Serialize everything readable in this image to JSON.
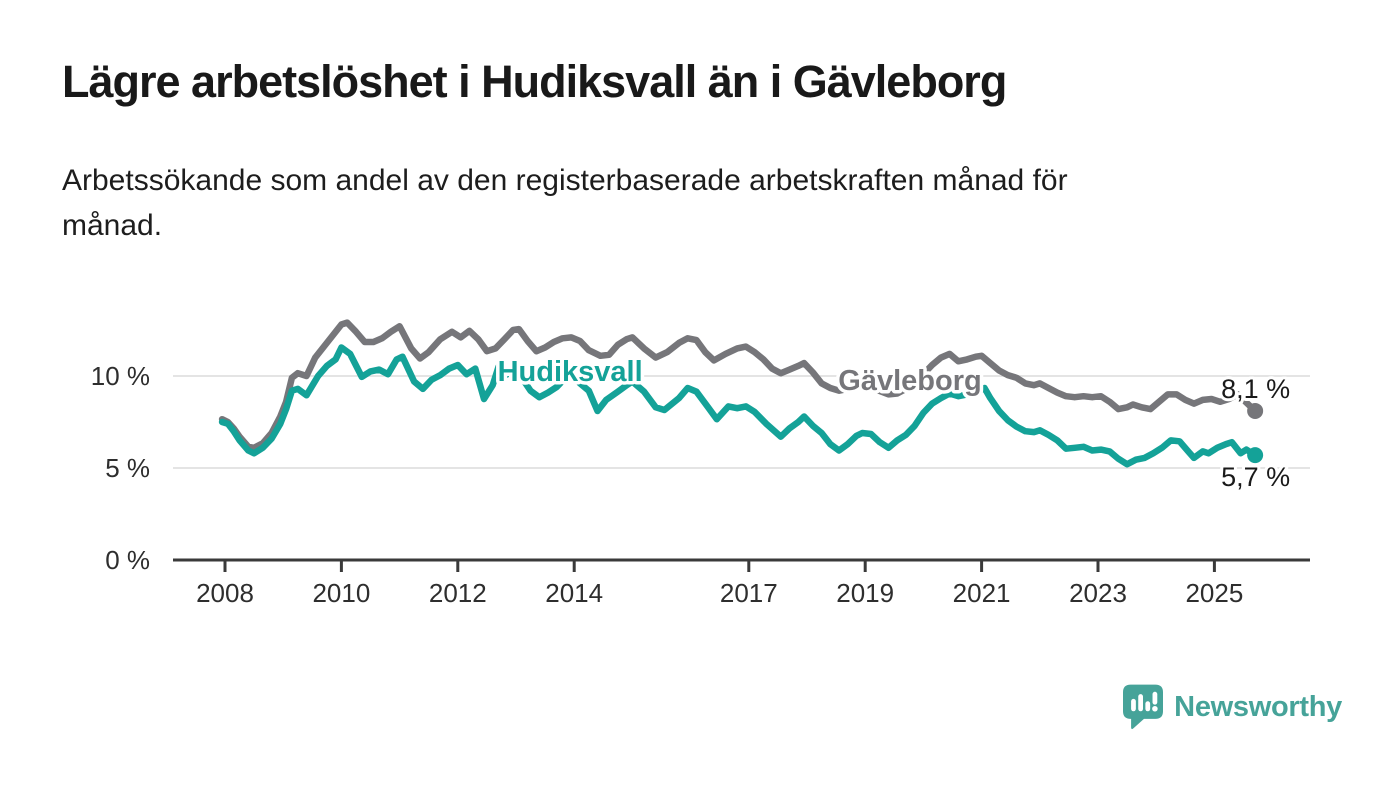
{
  "header": {
    "title": "Lägre arbetslöshet i Hudiksvall än i Gävleborg",
    "subtitle": "Arbetssökande som andel av den registerbaserade arbetskraften månad för månad."
  },
  "branding": {
    "name": "Newsworthy",
    "color": "#46a399"
  },
  "chart_data": {
    "type": "line",
    "title": "Lägre arbetslöshet i Hudiksvall än i Gävleborg",
    "subtitle": "Arbetssökande som andel av den registerbaserade arbetskraften månad för månad.",
    "grid": true,
    "legend": "inline-labels",
    "style": {
      "grid_color": "#dcdcdc",
      "axis_color": "#3a3a3a",
      "tick_label_color": "#2e2e2e",
      "value_label_color": "#1a1a1a",
      "background": "#ffffff"
    },
    "x_axis": {
      "unit": "year",
      "min": 2007.95,
      "max": 2026.5,
      "ticks": [
        2008,
        2010,
        2012,
        2014,
        2017,
        2019,
        2021,
        2023,
        2025
      ]
    },
    "y_axis": {
      "unit": "%",
      "min": 0,
      "max": 13.4,
      "ticks": [
        {
          "value": 0,
          "label": "0 %"
        },
        {
          "value": 5,
          "label": "5 %"
        },
        {
          "value": 10,
          "label": "10 %"
        }
      ]
    },
    "series": [
      {
        "name": "Gävleborg",
        "color": "#76767a",
        "end_label": "8,1 %",
        "end_value": 8.1,
        "label_pos": {
          "year": 2019.77,
          "value": 9.78
        },
        "points": [
          [
            2007.95,
            7.65
          ],
          [
            2008.05,
            7.5
          ],
          [
            2008.15,
            7.15
          ],
          [
            2008.25,
            6.7
          ],
          [
            2008.4,
            6.15
          ],
          [
            2008.5,
            6.1
          ],
          [
            2008.65,
            6.35
          ],
          [
            2008.8,
            6.9
          ],
          [
            2008.95,
            7.8
          ],
          [
            2009.05,
            8.6
          ],
          [
            2009.15,
            9.9
          ],
          [
            2009.25,
            10.15
          ],
          [
            2009.4,
            10.0
          ],
          [
            2009.55,
            11.0
          ],
          [
            2009.7,
            11.6
          ],
          [
            2009.85,
            12.2
          ],
          [
            2010.0,
            12.8
          ],
          [
            2010.1,
            12.9
          ],
          [
            2010.25,
            12.4
          ],
          [
            2010.4,
            11.85
          ],
          [
            2010.55,
            11.85
          ],
          [
            2010.7,
            12.05
          ],
          [
            2010.85,
            12.4
          ],
          [
            2011.0,
            12.7
          ],
          [
            2011.2,
            11.5
          ],
          [
            2011.35,
            10.95
          ],
          [
            2011.5,
            11.3
          ],
          [
            2011.7,
            12.0
          ],
          [
            2011.9,
            12.4
          ],
          [
            2012.05,
            12.1
          ],
          [
            2012.2,
            12.45
          ],
          [
            2012.35,
            12.0
          ],
          [
            2012.5,
            11.35
          ],
          [
            2012.65,
            11.5
          ],
          [
            2012.8,
            12.0
          ],
          [
            2012.95,
            12.5
          ],
          [
            2013.05,
            12.55
          ],
          [
            2013.2,
            11.9
          ],
          [
            2013.35,
            11.35
          ],
          [
            2013.5,
            11.55
          ],
          [
            2013.65,
            11.85
          ],
          [
            2013.8,
            12.05
          ],
          [
            2013.95,
            12.1
          ],
          [
            2014.1,
            11.9
          ],
          [
            2014.25,
            11.4
          ],
          [
            2014.45,
            11.1
          ],
          [
            2014.6,
            11.15
          ],
          [
            2014.75,
            11.7
          ],
          [
            2014.9,
            12.0
          ],
          [
            2015.0,
            12.1
          ],
          [
            2015.2,
            11.5
          ],
          [
            2015.4,
            11.0
          ],
          [
            2015.6,
            11.3
          ],
          [
            2015.8,
            11.8
          ],
          [
            2015.95,
            12.05
          ],
          [
            2016.1,
            11.95
          ],
          [
            2016.25,
            11.3
          ],
          [
            2016.4,
            10.85
          ],
          [
            2016.6,
            11.2
          ],
          [
            2016.8,
            11.5
          ],
          [
            2016.95,
            11.6
          ],
          [
            2017.1,
            11.3
          ],
          [
            2017.25,
            10.9
          ],
          [
            2017.4,
            10.4
          ],
          [
            2017.55,
            10.15
          ],
          [
            2017.7,
            10.35
          ],
          [
            2017.85,
            10.55
          ],
          [
            2017.95,
            10.7
          ],
          [
            2018.1,
            10.2
          ],
          [
            2018.25,
            9.6
          ],
          [
            2018.4,
            9.35
          ],
          [
            2018.55,
            9.2
          ],
          [
            2018.7,
            9.3
          ],
          [
            2018.9,
            9.55
          ],
          [
            2019.05,
            9.45
          ],
          [
            2019.2,
            9.25
          ],
          [
            2019.4,
            9.0
          ],
          [
            2019.55,
            9.05
          ],
          [
            2019.7,
            9.3
          ],
          [
            2019.85,
            9.6
          ],
          [
            2020.0,
            10.1
          ],
          [
            2020.15,
            10.6
          ],
          [
            2020.3,
            11.0
          ],
          [
            2020.45,
            11.2
          ],
          [
            2020.6,
            10.8
          ],
          [
            2020.75,
            10.9
          ],
          [
            2020.9,
            11.05
          ],
          [
            2021.0,
            11.1
          ],
          [
            2021.15,
            10.7
          ],
          [
            2021.3,
            10.3
          ],
          [
            2021.45,
            10.05
          ],
          [
            2021.6,
            9.9
          ],
          [
            2021.75,
            9.6
          ],
          [
            2021.9,
            9.5
          ],
          [
            2022.0,
            9.6
          ],
          [
            2022.15,
            9.35
          ],
          [
            2022.3,
            9.1
          ],
          [
            2022.45,
            8.9
          ],
          [
            2022.6,
            8.85
          ],
          [
            2022.75,
            8.9
          ],
          [
            2022.9,
            8.85
          ],
          [
            2023.05,
            8.9
          ],
          [
            2023.2,
            8.6
          ],
          [
            2023.35,
            8.2
          ],
          [
            2023.5,
            8.3
          ],
          [
            2023.6,
            8.45
          ],
          [
            2023.75,
            8.3
          ],
          [
            2023.9,
            8.2
          ],
          [
            2024.05,
            8.6
          ],
          [
            2024.2,
            9.0
          ],
          [
            2024.35,
            9.0
          ],
          [
            2024.5,
            8.7
          ],
          [
            2024.65,
            8.5
          ],
          [
            2024.8,
            8.7
          ],
          [
            2024.95,
            8.75
          ],
          [
            2025.1,
            8.6
          ],
          [
            2025.25,
            8.75
          ],
          [
            2025.4,
            9.0
          ],
          [
            2025.5,
            8.7
          ],
          [
            2025.6,
            8.4
          ],
          [
            2025.7,
            8.1
          ]
        ]
      },
      {
        "name": "Hudiksvall",
        "color": "#14a298",
        "end_label": "5,7 %",
        "end_value": 5.7,
        "label_pos": {
          "year": 2013.93,
          "value": 10.28
        },
        "points": [
          [
            2007.95,
            7.5
          ],
          [
            2008.05,
            7.4
          ],
          [
            2008.15,
            7.0
          ],
          [
            2008.25,
            6.5
          ],
          [
            2008.4,
            5.95
          ],
          [
            2008.5,
            5.8
          ],
          [
            2008.65,
            6.1
          ],
          [
            2008.8,
            6.6
          ],
          [
            2008.95,
            7.4
          ],
          [
            2009.05,
            8.2
          ],
          [
            2009.15,
            9.2
          ],
          [
            2009.25,
            9.3
          ],
          [
            2009.4,
            8.95
          ],
          [
            2009.6,
            10.0
          ],
          [
            2009.75,
            10.55
          ],
          [
            2009.9,
            10.9
          ],
          [
            2010.0,
            11.55
          ],
          [
            2010.15,
            11.2
          ],
          [
            2010.35,
            9.95
          ],
          [
            2010.5,
            10.25
          ],
          [
            2010.65,
            10.35
          ],
          [
            2010.8,
            10.1
          ],
          [
            2010.95,
            10.9
          ],
          [
            2011.05,
            11.05
          ],
          [
            2011.25,
            9.7
          ],
          [
            2011.4,
            9.3
          ],
          [
            2011.55,
            9.8
          ],
          [
            2011.7,
            10.05
          ],
          [
            2011.85,
            10.4
          ],
          [
            2012.0,
            10.6
          ],
          [
            2012.15,
            10.1
          ],
          [
            2012.3,
            10.4
          ],
          [
            2012.45,
            8.75
          ],
          [
            2012.6,
            9.5
          ],
          [
            2012.7,
            10.5
          ],
          [
            2012.8,
            10.0
          ],
          [
            2012.95,
            10.3
          ],
          [
            2013.1,
            9.9
          ],
          [
            2013.25,
            9.2
          ],
          [
            2013.4,
            8.85
          ],
          [
            2013.55,
            9.1
          ],
          [
            2013.7,
            9.4
          ],
          [
            2013.85,
            9.9
          ],
          [
            2013.95,
            10.1
          ],
          [
            2014.1,
            9.6
          ],
          [
            2014.25,
            9.2
          ],
          [
            2014.4,
            8.1
          ],
          [
            2014.55,
            8.7
          ],
          [
            2014.75,
            9.15
          ],
          [
            2014.9,
            9.5
          ],
          [
            2015.0,
            9.7
          ],
          [
            2015.2,
            9.15
          ],
          [
            2015.4,
            8.3
          ],
          [
            2015.55,
            8.15
          ],
          [
            2015.8,
            8.8
          ],
          [
            2015.95,
            9.35
          ],
          [
            2016.1,
            9.15
          ],
          [
            2016.3,
            8.3
          ],
          [
            2016.45,
            7.65
          ],
          [
            2016.65,
            8.35
          ],
          [
            2016.8,
            8.25
          ],
          [
            2016.95,
            8.35
          ],
          [
            2017.1,
            8.05
          ],
          [
            2017.3,
            7.4
          ],
          [
            2017.55,
            6.7
          ],
          [
            2017.7,
            7.15
          ],
          [
            2017.85,
            7.5
          ],
          [
            2017.95,
            7.8
          ],
          [
            2018.1,
            7.3
          ],
          [
            2018.25,
            6.9
          ],
          [
            2018.4,
            6.3
          ],
          [
            2018.55,
            5.95
          ],
          [
            2018.7,
            6.3
          ],
          [
            2018.85,
            6.75
          ],
          [
            2018.95,
            6.9
          ],
          [
            2019.1,
            6.85
          ],
          [
            2019.25,
            6.4
          ],
          [
            2019.4,
            6.1
          ],
          [
            2019.55,
            6.5
          ],
          [
            2019.7,
            6.8
          ],
          [
            2019.85,
            7.3
          ],
          [
            2020.0,
            8.0
          ],
          [
            2020.15,
            8.5
          ],
          [
            2020.3,
            8.8
          ],
          [
            2020.45,
            9.05
          ],
          [
            2020.6,
            8.9
          ],
          [
            2020.75,
            9.0
          ],
          [
            2020.9,
            9.15
          ],
          [
            2021.05,
            9.35
          ],
          [
            2021.15,
            8.8
          ],
          [
            2021.3,
            8.1
          ],
          [
            2021.45,
            7.6
          ],
          [
            2021.6,
            7.25
          ],
          [
            2021.75,
            7.0
          ],
          [
            2021.9,
            6.95
          ],
          [
            2022.0,
            7.05
          ],
          [
            2022.15,
            6.8
          ],
          [
            2022.3,
            6.5
          ],
          [
            2022.45,
            6.05
          ],
          [
            2022.6,
            6.1
          ],
          [
            2022.75,
            6.15
          ],
          [
            2022.9,
            5.95
          ],
          [
            2023.05,
            6.0
          ],
          [
            2023.2,
            5.9
          ],
          [
            2023.35,
            5.5
          ],
          [
            2023.5,
            5.2
          ],
          [
            2023.65,
            5.45
          ],
          [
            2023.8,
            5.55
          ],
          [
            2023.95,
            5.8
          ],
          [
            2024.1,
            6.1
          ],
          [
            2024.25,
            6.5
          ],
          [
            2024.4,
            6.45
          ],
          [
            2024.55,
            5.9
          ],
          [
            2024.65,
            5.55
          ],
          [
            2024.8,
            5.9
          ],
          [
            2024.9,
            5.8
          ],
          [
            2025.05,
            6.1
          ],
          [
            2025.2,
            6.3
          ],
          [
            2025.3,
            6.4
          ],
          [
            2025.45,
            5.8
          ],
          [
            2025.55,
            6.0
          ],
          [
            2025.7,
            5.7
          ]
        ]
      }
    ]
  }
}
